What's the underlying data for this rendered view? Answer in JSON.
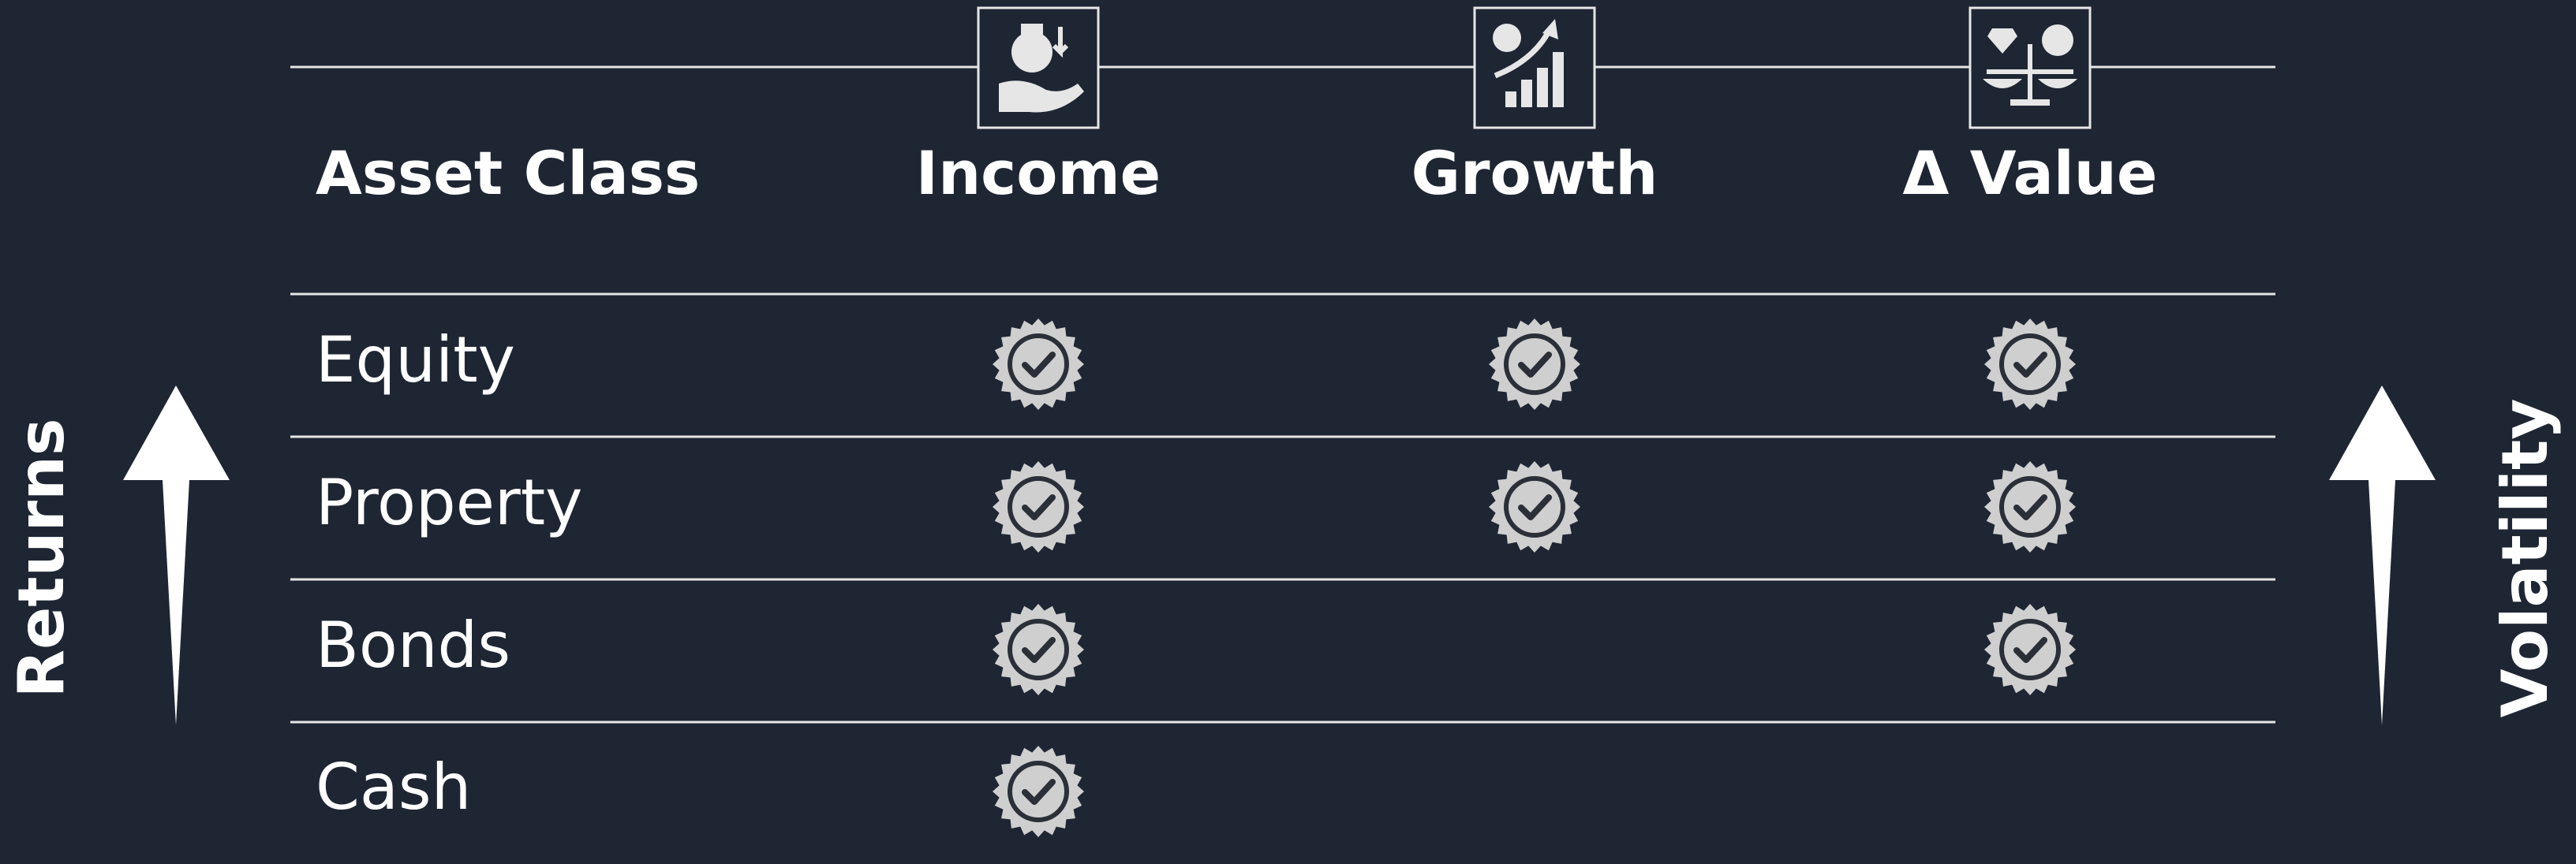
{
  "table": {
    "header": [
      "Asset Class",
      "Income",
      "Growth",
      "Δ Value"
    ],
    "rows": [
      {
        "label": "Equity",
        "checks": [
          true,
          true,
          true
        ]
      },
      {
        "label": "Property",
        "checks": [
          true,
          true,
          true
        ]
      },
      {
        "label": "Bonds",
        "checks": [
          true,
          false,
          true
        ]
      },
      {
        "label": "Cash",
        "checks": [
          true,
          false,
          false
        ]
      }
    ]
  },
  "side_labels": {
    "left": "Returns",
    "right": "Volatility"
  }
}
